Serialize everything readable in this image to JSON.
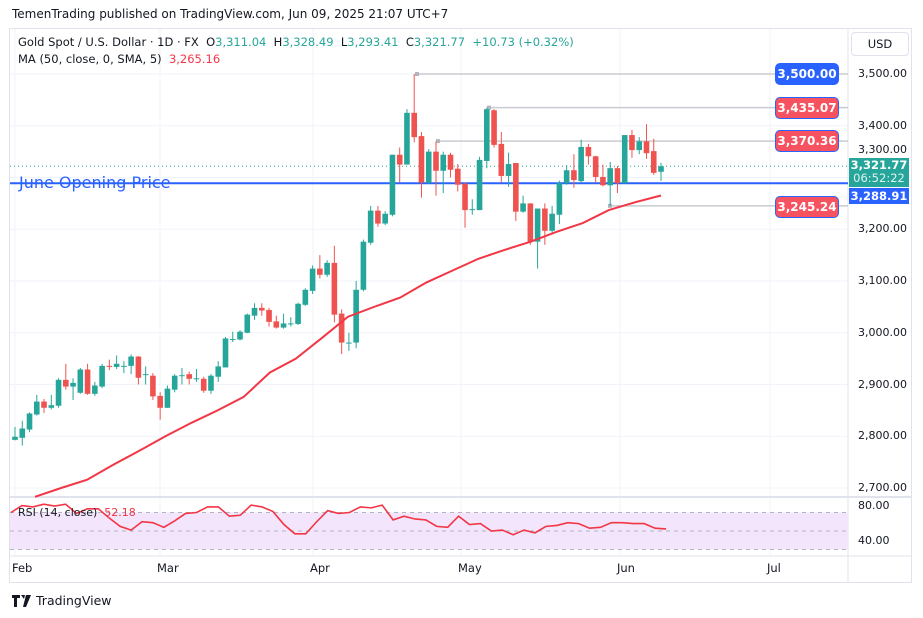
{
  "header": {
    "published": "TemenTrading published on TradingView.com, Jun 09, 2025 21:07 UTC+7"
  },
  "legend": {
    "symbol": "Gold Spot / U.S. Dollar · 1D · FX",
    "o_label": "O",
    "o": "3,311.04",
    "h_label": "H",
    "h": "3,328.49",
    "l_label": "L",
    "l": "3,293.41",
    "c_label": "C",
    "c": "3,321.77",
    "change": "+10.73 (+0.32%)",
    "ma_label": "MA (50, close, 0, SMA, 5)",
    "ma_value": "3,265.16",
    "rsi_label": "RSI (14, close)",
    "rsi_value": "52.18"
  },
  "currency": "USD",
  "colors": {
    "up": "#26a69a",
    "down": "#ef5350",
    "ma": "#f23645",
    "rsi": "#f23645",
    "level_blue": "#2962ff",
    "level_red": "#f7525f"
  },
  "annotation": {
    "text": "June Opening Price",
    "price": 3288.91
  },
  "levels": [
    {
      "price": 3500.0,
      "label": "3,500.00",
      "color": "#2962ff"
    },
    {
      "price": 3435.07,
      "label": "3,435.07",
      "color": "#f7525f"
    },
    {
      "price": 3370.36,
      "label": "3,370.36",
      "color": "#f7525f"
    },
    {
      "price": 3245.24,
      "label": "3,245.24",
      "color": "#f7525f"
    }
  ],
  "last_price": {
    "label": "3,321.77",
    "countdown": "06:52:22",
    "price": 3321.77
  },
  "june_open_tag": "3,288.91",
  "price_ticks": [
    "3,500.00",
    "3,400.00",
    "3,300.00",
    "3,200.00",
    "3,100.00",
    "3,000.00",
    "2,900.00",
    "2,800.00",
    "2,700.00"
  ],
  "rsi_ticks": [
    "80.00",
    "40.00"
  ],
  "date_ticks": [
    "Feb",
    "Mar",
    "Apr",
    "May",
    "Jun",
    "Jul"
  ],
  "footer": {
    "brand": "TradingView"
  },
  "chart_data": {
    "type": "candlestick",
    "interval": "1D",
    "ylim": [
      2680,
      3560
    ],
    "y_ticks": [
      3500,
      3400,
      3300,
      3200,
      3100,
      3000,
      2900,
      2800,
      2700
    ],
    "x_ticks": [
      "Feb",
      "Mar",
      "Apr",
      "May",
      "Jun",
      "Jul"
    ],
    "grid": true,
    "ohlc": [
      [
        2793,
        2818,
        2792,
        2799
      ],
      [
        2797,
        2830,
        2782,
        2815
      ],
      [
        2813,
        2846,
        2808,
        2844
      ],
      [
        2842,
        2880,
        2840,
        2867
      ],
      [
        2867,
        2872,
        2845,
        2855
      ],
      [
        2855,
        2880,
        2852,
        2860
      ],
      [
        2859,
        2912,
        2855,
        2909
      ],
      [
        2909,
        2940,
        2890,
        2896
      ],
      [
        2896,
        2912,
        2870,
        2903
      ],
      [
        2884,
        2932,
        2882,
        2929
      ],
      [
        2929,
        2940,
        2880,
        2882
      ],
      [
        2882,
        2905,
        2878,
        2898
      ],
      [
        2896,
        2940,
        2893,
        2936
      ],
      [
        2936,
        2948,
        2928,
        2934
      ],
      [
        2934,
        2956,
        2930,
        2940
      ],
      [
        2936,
        2945,
        2922,
        2936
      ],
      [
        2936,
        2958,
        2920,
        2954
      ],
      [
        2954,
        2955,
        2900,
        2913
      ],
      [
        2920,
        2935,
        2900,
        2920
      ],
      [
        2917,
        2922,
        2870,
        2877
      ],
      [
        2878,
        2885,
        2832,
        2855
      ],
      [
        2855,
        2898,
        2855,
        2892
      ],
      [
        2890,
        2920,
        2885,
        2917
      ],
      [
        2918,
        2932,
        2900,
        2918
      ],
      [
        2920,
        2925,
        2900,
        2911
      ],
      [
        2912,
        2930,
        2905,
        2912
      ],
      [
        2911,
        2915,
        2884,
        2888
      ],
      [
        2888,
        2920,
        2882,
        2917
      ],
      [
        2915,
        2945,
        2905,
        2935
      ],
      [
        2933,
        2992,
        2933,
        2989
      ],
      [
        2988,
        3002,
        2982,
        2988
      ],
      [
        2987,
        3005,
        2985,
        3002
      ],
      [
        3000,
        3037,
        2999,
        3035
      ],
      [
        3033,
        3057,
        3025,
        3048
      ],
      [
        3048,
        3057,
        3033,
        3043
      ],
      [
        3044,
        3048,
        3012,
        3021
      ],
      [
        3022,
        3033,
        3008,
        3010
      ],
      [
        3010,
        3037,
        3008,
        3018
      ],
      [
        3018,
        3030,
        3012,
        3018
      ],
      [
        3017,
        3058,
        3015,
        3056
      ],
      [
        3054,
        3086,
        3052,
        3083
      ],
      [
        3081,
        3130,
        3075,
        3124
      ],
      [
        3124,
        3150,
        3105,
        3112
      ],
      [
        3112,
        3140,
        3108,
        3135
      ],
      [
        3135,
        3168,
        3020,
        3035
      ],
      [
        3037,
        3045,
        2959,
        2981
      ],
      [
        2981,
        3000,
        2965,
        2981
      ],
      [
        2981,
        3100,
        2970,
        3083
      ],
      [
        3083,
        3180,
        3080,
        3176
      ],
      [
        3174,
        3245,
        3170,
        3236
      ],
      [
        3236,
        3245,
        3205,
        3211
      ],
      [
        3211,
        3235,
        3208,
        3230
      ],
      [
        3228,
        3344,
        3225,
        3344
      ],
      [
        3344,
        3358,
        3290,
        3325
      ],
      [
        3325,
        3432,
        3325,
        3425
      ],
      [
        3425,
        3500,
        3368,
        3378
      ],
      [
        3380,
        3388,
        3261,
        3290
      ],
      [
        3290,
        3355,
        3288,
        3350
      ],
      [
        3350,
        3370,
        3265,
        3313
      ],
      [
        3313,
        3350,
        3270,
        3344
      ],
      [
        3344,
        3348,
        3300,
        3315
      ],
      [
        3317,
        3326,
        3273,
        3286
      ],
      [
        3288,
        3290,
        3203,
        3237
      ],
      [
        3239,
        3258,
        3228,
        3239
      ],
      [
        3237,
        3340,
        3237,
        3334
      ],
      [
        3332,
        3435,
        3318,
        3432
      ],
      [
        3430,
        3432,
        3358,
        3363
      ],
      [
        3365,
        3388,
        3290,
        3303
      ],
      [
        3303,
        3348,
        3282,
        3326
      ],
      [
        3328,
        3328,
        3216,
        3234
      ],
      [
        3234,
        3265,
        3232,
        3250
      ],
      [
        3250,
        3250,
        3170,
        3176
      ],
      [
        3176,
        3240,
        3124,
        3240
      ],
      [
        3240,
        3250,
        3170,
        3197
      ],
      [
        3197,
        3245,
        3192,
        3230
      ],
      [
        3228,
        3294,
        3210,
        3289
      ],
      [
        3289,
        3324,
        3286,
        3314
      ],
      [
        3314,
        3345,
        3280,
        3295
      ],
      [
        3293,
        3373,
        3290,
        3359
      ],
      [
        3359,
        3365,
        3325,
        3341
      ],
      [
        3341,
        3342,
        3290,
        3301
      ],
      [
        3301,
        3325,
        3283,
        3285
      ],
      [
        3285,
        3330,
        3245,
        3318
      ],
      [
        3318,
        3322,
        3270,
        3289
      ],
      [
        3289,
        3382,
        3289,
        3382
      ],
      [
        3382,
        3392,
        3338,
        3353
      ],
      [
        3353,
        3378,
        3345,
        3370
      ],
      [
        3370,
        3403,
        3336,
        3347
      ],
      [
        3351,
        3375,
        3305,
        3309
      ],
      [
        3311.04,
        3328.49,
        3293.41,
        3321.77
      ]
    ],
    "ma50": [
      2683,
      2700,
      2716,
      2745,
      2772,
      2800,
      2826,
      2850,
      2876,
      2923,
      2950,
      2990,
      3031,
      3050,
      3068,
      3097,
      3120,
      3143,
      3160,
      3176,
      3195,
      3212,
      3237,
      3252,
      3265.16
    ],
    "rsi14": {
      "ylim": [
        20,
        90
      ],
      "ticks": [
        80,
        40
      ],
      "bands": [
        70,
        50,
        30
      ],
      "values": [
        70,
        77.5,
        76,
        79,
        77,
        79,
        69,
        74,
        74,
        64,
        55,
        51,
        60,
        59,
        54,
        61,
        69,
        70,
        76,
        76,
        66,
        67,
        78,
        76,
        71,
        57,
        47,
        47,
        60,
        72,
        69,
        70,
        76,
        75,
        78,
        62,
        66,
        63,
        62,
        55,
        54,
        66,
        57,
        58,
        50,
        51,
        46,
        51,
        48,
        55,
        56,
        59,
        58,
        53,
        54,
        59,
        59,
        58,
        58,
        53,
        52.18
      ]
    }
  }
}
